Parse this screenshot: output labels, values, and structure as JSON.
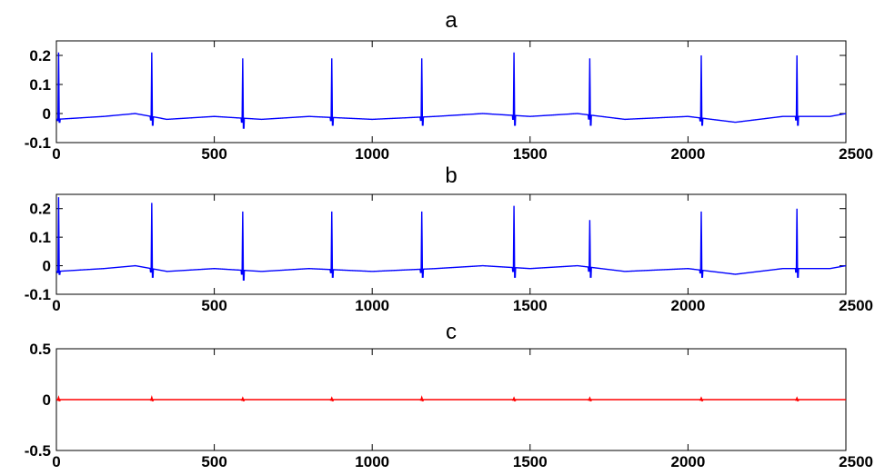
{
  "chart_data": [
    {
      "type": "line",
      "title": "a",
      "xlim": [
        0,
        2500
      ],
      "ylim": [
        -0.1,
        0.25
      ],
      "x_ticks": [
        0,
        500,
        1000,
        1500,
        2000,
        2500
      ],
      "x_tick_labels": [
        "0",
        "500",
        "1000",
        "1500",
        "2000",
        "2500"
      ],
      "y_ticks": [
        -0.1,
        0,
        0.1,
        0.2
      ],
      "y_tick_labels": [
        "-0.1",
        "0",
        "0.1",
        "0.2"
      ],
      "grid": false,
      "line_color": "#0000ff",
      "baseline": -0.01,
      "beats": [
        {
          "x": 5,
          "peak": 0.21,
          "trough": -0.03
        },
        {
          "x": 300,
          "peak": 0.21,
          "trough": -0.04
        },
        {
          "x": 588,
          "peak": 0.19,
          "trough": -0.05
        },
        {
          "x": 870,
          "peak": 0.19,
          "trough": -0.04
        },
        {
          "x": 1155,
          "peak": 0.19,
          "trough": -0.04
        },
        {
          "x": 1447,
          "peak": 0.21,
          "trough": -0.04
        },
        {
          "x": 1687,
          "peak": 0.19,
          "trough": -0.04
        },
        {
          "x": 2040,
          "peak": 0.2,
          "trough": -0.04
        },
        {
          "x": 2343,
          "peak": 0.2,
          "trough": -0.04
        }
      ],
      "wander": [
        [
          0,
          -0.01
        ],
        [
          150,
          0.0
        ],
        [
          250,
          0.01
        ],
        [
          350,
          -0.01
        ],
        [
          500,
          0.0
        ],
        [
          650,
          -0.01
        ],
        [
          800,
          0.0
        ],
        [
          1000,
          -0.01
        ],
        [
          1200,
          0.0
        ],
        [
          1350,
          0.01
        ],
        [
          1500,
          0.0
        ],
        [
          1650,
          0.01
        ],
        [
          1800,
          -0.01
        ],
        [
          2000,
          0.0
        ],
        [
          2150,
          -0.02
        ],
        [
          2300,
          0.0
        ],
        [
          2450,
          0.0
        ],
        [
          2500,
          0.01
        ]
      ]
    },
    {
      "type": "line",
      "title": "b",
      "xlim": [
        0,
        2500
      ],
      "ylim": [
        -0.1,
        0.25
      ],
      "x_ticks": [
        0,
        500,
        1000,
        1500,
        2000,
        2500
      ],
      "x_tick_labels": [
        "0",
        "500",
        "1000",
        "1500",
        "2000",
        "2500"
      ],
      "y_ticks": [
        -0.1,
        0,
        0.1,
        0.2
      ],
      "y_tick_labels": [
        "-0.1",
        "0",
        "0.1",
        "0.2"
      ],
      "grid": false,
      "line_color": "#0000ff",
      "baseline": -0.01,
      "beats": [
        {
          "x": 5,
          "peak": 0.24,
          "trough": -0.03
        },
        {
          "x": 300,
          "peak": 0.22,
          "trough": -0.04
        },
        {
          "x": 588,
          "peak": 0.19,
          "trough": -0.05
        },
        {
          "x": 870,
          "peak": 0.19,
          "trough": -0.04
        },
        {
          "x": 1155,
          "peak": 0.19,
          "trough": -0.04
        },
        {
          "x": 1447,
          "peak": 0.21,
          "trough": -0.04
        },
        {
          "x": 1687,
          "peak": 0.16,
          "trough": -0.04
        },
        {
          "x": 2040,
          "peak": 0.19,
          "trough": -0.04
        },
        {
          "x": 2343,
          "peak": 0.2,
          "trough": -0.04
        }
      ],
      "wander": [
        [
          0,
          -0.01
        ],
        [
          150,
          0.0
        ],
        [
          250,
          0.01
        ],
        [
          350,
          -0.01
        ],
        [
          500,
          0.0
        ],
        [
          650,
          -0.01
        ],
        [
          800,
          0.0
        ],
        [
          1000,
          -0.01
        ],
        [
          1200,
          0.0
        ],
        [
          1350,
          0.01
        ],
        [
          1500,
          0.0
        ],
        [
          1650,
          0.01
        ],
        [
          1800,
          -0.01
        ],
        [
          2000,
          0.0
        ],
        [
          2150,
          -0.02
        ],
        [
          2300,
          0.0
        ],
        [
          2450,
          0.0
        ],
        [
          2500,
          0.01
        ]
      ]
    },
    {
      "type": "line",
      "title": "c",
      "xlim": [
        0,
        2500
      ],
      "ylim": [
        -0.5,
        0.5
      ],
      "x_ticks": [
        0,
        500,
        1000,
        1500,
        2000,
        2500
      ],
      "x_tick_labels": [
        "0",
        "500",
        "1000",
        "1500",
        "2000",
        "2500"
      ],
      "y_ticks": [
        -0.5,
        0,
        0.5
      ],
      "y_tick_labels": [
        "-0.5",
        "0",
        "0.5"
      ],
      "grid": false,
      "line_color": "#ff0000",
      "baseline": 0.0,
      "beats": [
        {
          "x": 5,
          "peak": 0.02,
          "trough": -0.01
        },
        {
          "x": 300,
          "peak": 0.02,
          "trough": -0.01
        },
        {
          "x": 588,
          "peak": 0.015,
          "trough": -0.01
        },
        {
          "x": 870,
          "peak": 0.015,
          "trough": -0.01
        },
        {
          "x": 1155,
          "peak": 0.02,
          "trough": -0.01
        },
        {
          "x": 1447,
          "peak": 0.015,
          "trough": -0.01
        },
        {
          "x": 1687,
          "peak": 0.015,
          "trough": -0.01
        },
        {
          "x": 2040,
          "peak": 0.015,
          "trough": -0.01
        },
        {
          "x": 2343,
          "peak": 0.015,
          "trough": -0.01
        }
      ],
      "wander": [
        [
          0,
          0.0
        ],
        [
          2500,
          0.0
        ]
      ]
    }
  ]
}
